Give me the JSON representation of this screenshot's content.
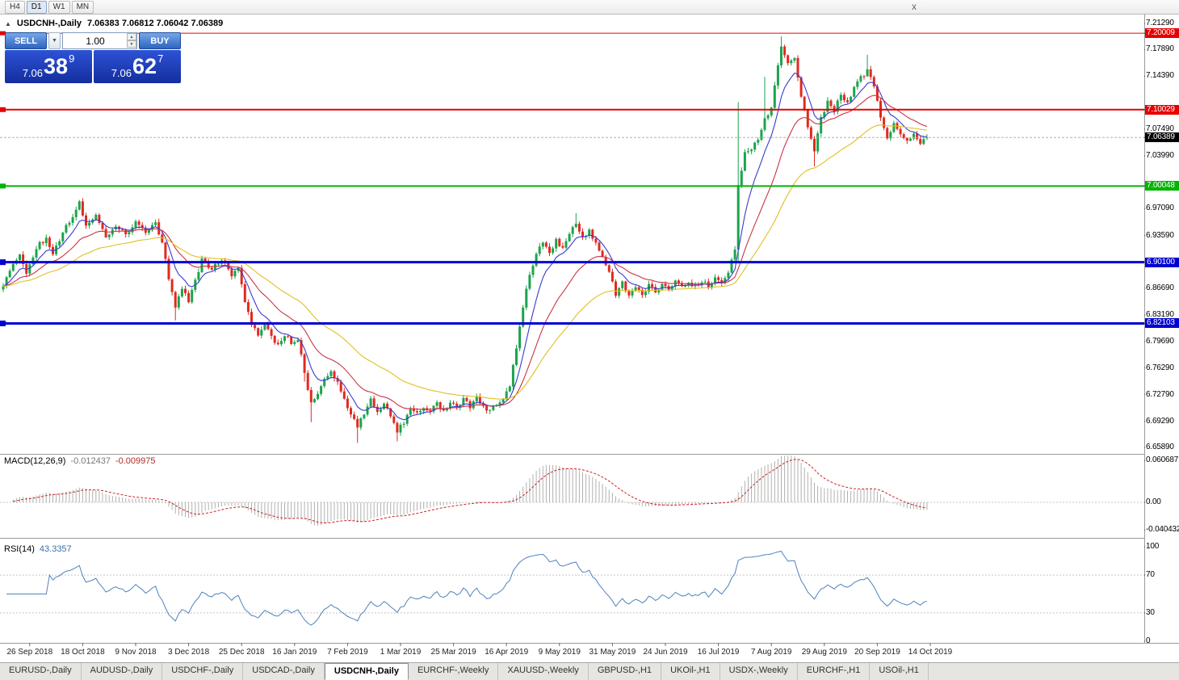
{
  "toolbar": {
    "timeframes": [
      "H4",
      "D1",
      "W1",
      "MN"
    ],
    "active_timeframe": "D1",
    "close_label": "x"
  },
  "chart": {
    "symbol_title": "USDCNH-,Daily",
    "ohlc_text": "7.06383 7.06812 7.06042 7.06389",
    "one_click": {
      "sell_label": "SELL",
      "buy_label": "BUY",
      "volume": "1.00",
      "sell_price": {
        "prefix": "7.06",
        "big": "38",
        "sup": "9"
      },
      "buy_price": {
        "prefix": "7.06",
        "big": "62",
        "sup": "7"
      }
    },
    "price_axis_labels": [
      {
        "text": "7.21290",
        "kind": "plain"
      },
      {
        "text": "7.20009",
        "kind": "red"
      },
      {
        "text": "7.17890",
        "kind": "plain"
      },
      {
        "text": "7.14390",
        "kind": "plain"
      },
      {
        "text": "7.10029",
        "kind": "red"
      },
      {
        "text": "7.07490",
        "kind": "plain"
      },
      {
        "text": "7.06389",
        "kind": "current"
      },
      {
        "text": "7.03990",
        "kind": "plain"
      },
      {
        "text": "7.00048",
        "kind": "green"
      },
      {
        "text": "6.97090",
        "kind": "plain"
      },
      {
        "text": "6.93590",
        "kind": "plain"
      },
      {
        "text": "6.90100",
        "kind": "blue"
      },
      {
        "text": "6.86690",
        "kind": "plain"
      },
      {
        "text": "6.83190",
        "kind": "plain"
      },
      {
        "text": "6.82103",
        "kind": "blue"
      },
      {
        "text": "6.79690",
        "kind": "plain"
      },
      {
        "text": "6.76290",
        "kind": "plain"
      },
      {
        "text": "6.72790",
        "kind": "plain"
      },
      {
        "text": "6.69290",
        "kind": "plain"
      },
      {
        "text": "6.65890",
        "kind": "plain"
      }
    ]
  },
  "macd_panel": {
    "name": "MACD(12,26,9)",
    "value1": "-0.012437",
    "value2": "-0.009975",
    "axis": [
      {
        "text": "0.060687",
        "v": 0.060687
      },
      {
        "text": "0.00",
        "v": 0
      },
      {
        "text": "-0.040432",
        "v": -0.040432
      }
    ]
  },
  "rsi_panel": {
    "name": "RSI(14)",
    "value": "43.3357",
    "axis": [
      {
        "text": "100",
        "v": 100
      },
      {
        "text": "70",
        "v": 70
      },
      {
        "text": "30",
        "v": 30
      },
      {
        "text": "0",
        "v": 0
      }
    ]
  },
  "tabs": {
    "active": "USDCNH-,Daily",
    "items": [
      "EURUSD-,Daily",
      "AUDUSD-,Daily",
      "USDCHF-,Daily",
      "USDCAD-,Daily",
      "USDCNH-,Daily",
      "EURCHF-,Weekly",
      "XAUUSD-,Weekly",
      "GBPUSD-,H1",
      "UKOil-,H1",
      "USDX-,Weekly",
      "EURCHF-,H1",
      "USOil-,H1"
    ]
  },
  "chart_data": {
    "type": "candlestick",
    "symbol": "USDCNH",
    "timeframe": "Daily",
    "candle_count": 280,
    "visible_price_range": {
      "top": 7.2245,
      "bottom": 6.6506
    },
    "ohlc_current": {
      "open": 7.06383,
      "high": 7.06812,
      "low": 7.06042,
      "close": 7.06389
    },
    "close_waypoints": [
      [
        0,
        6.872
      ],
      [
        3,
        6.898
      ],
      [
        5,
        6.912
      ],
      [
        7,
        6.888
      ],
      [
        10,
        6.92
      ],
      [
        13,
        6.933
      ],
      [
        15,
        6.912
      ],
      [
        18,
        6.94
      ],
      [
        21,
        6.962
      ],
      [
        23,
        6.978
      ],
      [
        25,
        6.948
      ],
      [
        28,
        6.962
      ],
      [
        31,
        6.934
      ],
      [
        34,
        6.95
      ],
      [
        37,
        6.936
      ],
      [
        40,
        6.952
      ],
      [
        43,
        6.94
      ],
      [
        46,
        6.952
      ],
      [
        48,
        6.928
      ],
      [
        50,
        6.88
      ],
      [
        52,
        6.842
      ],
      [
        54,
        6.868
      ],
      [
        56,
        6.85
      ],
      [
        58,
        6.878
      ],
      [
        60,
        6.904
      ],
      [
        63,
        6.892
      ],
      [
        66,
        6.906
      ],
      [
        69,
        6.884
      ],
      [
        71,
        6.894
      ],
      [
        73,
        6.85
      ],
      [
        75,
        6.82
      ],
      [
        77,
        6.806
      ],
      [
        79,
        6.822
      ],
      [
        81,
        6.804
      ],
      [
        83,
        6.792
      ],
      [
        85,
        6.807
      ],
      [
        87,
        6.795
      ],
      [
        89,
        6.802
      ],
      [
        91,
        6.758
      ],
      [
        93,
        6.715
      ],
      [
        95,
        6.73
      ],
      [
        97,
        6.748
      ],
      [
        99,
        6.757
      ],
      [
        101,
        6.745
      ],
      [
        103,
        6.72
      ],
      [
        105,
        6.705
      ],
      [
        107,
        6.688
      ],
      [
        109,
        6.703
      ],
      [
        111,
        6.72
      ],
      [
        113,
        6.705
      ],
      [
        115,
        6.714
      ],
      [
        117,
        6.7
      ],
      [
        119,
        6.68
      ],
      [
        121,
        6.692
      ],
      [
        123,
        6.71
      ],
      [
        125,
        6.702
      ],
      [
        127,
        6.713
      ],
      [
        129,
        6.705
      ],
      [
        131,
        6.716
      ],
      [
        133,
        6.708
      ],
      [
        135,
        6.718
      ],
      [
        137,
        6.71
      ],
      [
        139,
        6.721
      ],
      [
        141,
        6.712
      ],
      [
        143,
        6.723
      ],
      [
        145,
        6.713
      ],
      [
        147,
        6.707
      ],
      [
        149,
        6.715
      ],
      [
        151,
        6.722
      ],
      [
        153,
        6.74
      ],
      [
        155,
        6.79
      ],
      [
        157,
        6.842
      ],
      [
        159,
        6.886
      ],
      [
        161,
        6.91
      ],
      [
        163,
        6.928
      ],
      [
        165,
        6.912
      ],
      [
        167,
        6.93
      ],
      [
        169,
        6.918
      ],
      [
        171,
        6.94
      ],
      [
        173,
        6.952
      ],
      [
        175,
        6.934
      ],
      [
        177,
        6.941
      ],
      [
        179,
        6.924
      ],
      [
        181,
        6.908
      ],
      [
        183,
        6.888
      ],
      [
        185,
        6.86
      ],
      [
        187,
        6.874
      ],
      [
        189,
        6.857
      ],
      [
        191,
        6.871
      ],
      [
        193,
        6.86
      ],
      [
        195,
        6.871
      ],
      [
        197,
        6.862
      ],
      [
        199,
        6.871
      ],
      [
        201,
        6.865
      ],
      [
        203,
        6.875
      ],
      [
        205,
        6.867
      ],
      [
        207,
        6.876
      ],
      [
        209,
        6.869
      ],
      [
        211,
        6.877
      ],
      [
        213,
        6.871
      ],
      [
        215,
        6.879
      ],
      [
        217,
        6.873
      ],
      [
        219,
        6.888
      ],
      [
        221,
        6.92
      ],
      [
        222,
        7.0
      ],
      [
        224,
        7.045
      ],
      [
        226,
        7.05
      ],
      [
        228,
        7.062
      ],
      [
        230,
        7.09
      ],
      [
        232,
        7.1
      ],
      [
        234,
        7.16
      ],
      [
        235,
        7.185
      ],
      [
        237,
        7.16
      ],
      [
        239,
        7.168
      ],
      [
        241,
        7.12
      ],
      [
        243,
        7.075
      ],
      [
        245,
        7.048
      ],
      [
        247,
        7.09
      ],
      [
        249,
        7.11
      ],
      [
        251,
        7.1
      ],
      [
        253,
        7.12
      ],
      [
        255,
        7.11
      ],
      [
        257,
        7.13
      ],
      [
        259,
        7.142
      ],
      [
        261,
        7.15
      ],
      [
        263,
        7.13
      ],
      [
        265,
        7.09
      ],
      [
        267,
        7.065
      ],
      [
        269,
        7.082
      ],
      [
        271,
        7.07
      ],
      [
        273,
        7.058
      ],
      [
        275,
        7.07
      ],
      [
        277,
        7.055
      ],
      [
        279,
        7.06389
      ]
    ],
    "wick_events": [
      {
        "i": 52,
        "low": 6.825
      },
      {
        "i": 91,
        "low": 6.745
      },
      {
        "i": 93,
        "low": 6.692
      },
      {
        "i": 107,
        "low": 6.665
      },
      {
        "i": 119,
        "low": 6.667
      },
      {
        "i": 173,
        "high": 6.965
      },
      {
        "i": 222,
        "low": 6.9,
        "high": 7.11
      },
      {
        "i": 230,
        "high": 7.143
      },
      {
        "i": 235,
        "high": 7.196
      },
      {
        "i": 245,
        "low": 7.026
      },
      {
        "i": 261,
        "high": 7.172
      }
    ],
    "horizontal_levels": [
      {
        "price": 7.20009,
        "color": "#e60000",
        "width": 1
      },
      {
        "price": 7.10029,
        "color": "#e60000",
        "width": 2
      },
      {
        "price": 7.00048,
        "color": "#00b400",
        "width": 2
      },
      {
        "price": 6.901,
        "color": "#0000d2",
        "width": 3
      },
      {
        "price": 6.82103,
        "color": "#0000d2",
        "width": 3
      }
    ],
    "bid_line_price": 7.06389,
    "moving_averages": [
      {
        "type": "ema",
        "period": 8,
        "color": "#3a3ad0"
      },
      {
        "type": "ema",
        "period": 21,
        "color": "#cc3344"
      },
      {
        "type": "ema",
        "period": 45,
        "color": "#e0c020"
      }
    ],
    "macd": {
      "fast": 12,
      "slow": 26,
      "signal": 9,
      "current_macd": -0.012437,
      "current_signal": -0.009975,
      "scale_top": 0.060687,
      "scale_bottom": -0.040432,
      "hist_color": "#b0b0b0",
      "signal_color": "#cc2222"
    },
    "rsi": {
      "period": 14,
      "current": 43.3357,
      "levels": [
        70,
        30
      ],
      "line_color": "#4f81bd"
    },
    "colors": {
      "up": "#1ca34c",
      "down": "#e02a20"
    },
    "time_labels": [
      {
        "i": 8,
        "label": "26 Sep 2018"
      },
      {
        "i": 24,
        "label": "18 Oct 2018"
      },
      {
        "i": 40,
        "label": "9 Nov 2018"
      },
      {
        "i": 56,
        "label": "3 Dec 2018"
      },
      {
        "i": 72,
        "label": "25 Dec 2018"
      },
      {
        "i": 88,
        "label": "16 Jan 2019"
      },
      {
        "i": 104,
        "label": "7 Feb 2019"
      },
      {
        "i": 120,
        "label": "1 Mar 2019"
      },
      {
        "i": 136,
        "label": "25 Mar 2019"
      },
      {
        "i": 152,
        "label": "16 Apr 2019"
      },
      {
        "i": 168,
        "label": "9 May 2019"
      },
      {
        "i": 184,
        "label": "31 May 2019"
      },
      {
        "i": 200,
        "label": "24 Jun 2019"
      },
      {
        "i": 216,
        "label": "16 Jul 2019"
      },
      {
        "i": 232,
        "label": "7 Aug 2019"
      },
      {
        "i": 248,
        "label": "29 Aug 2019"
      },
      {
        "i": 264,
        "label": "20 Sep 2019"
      },
      {
        "i": 280,
        "label": "14 Oct 2019"
      }
    ]
  }
}
